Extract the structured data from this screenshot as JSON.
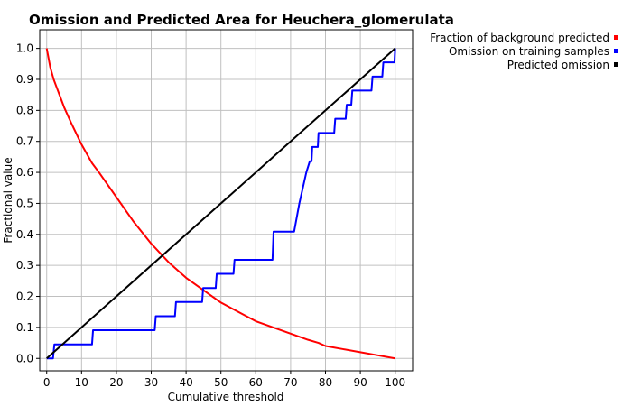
{
  "chart_data": {
    "type": "line",
    "title": "Omission and Predicted Area for Heuchera_glomerulata",
    "xlabel": "Cumulative threshold",
    "ylabel": "Fractional value",
    "xlim": [
      -2,
      105
    ],
    "ylim": [
      -0.04,
      1.06
    ],
    "x_ticks": [
      0,
      10,
      20,
      30,
      40,
      50,
      60,
      70,
      80,
      90,
      100
    ],
    "y_ticks": [
      0.0,
      0.1,
      0.2,
      0.3,
      0.4,
      0.5,
      0.6,
      0.7,
      0.8,
      0.9,
      1.0
    ],
    "x_tick_labels": [
      "0",
      "10",
      "20",
      "30",
      "40",
      "50",
      "60",
      "70",
      "80",
      "90",
      "100"
    ],
    "y_tick_labels": [
      "0.0",
      "0.1",
      "0.2",
      "0.3",
      "0.4",
      "0.5",
      "0.6",
      "0.7",
      "0.8",
      "0.9",
      "1.0"
    ],
    "grid": true,
    "legend_position": "top-right, outside plot",
    "series": [
      {
        "name": "Fraction of background predicted",
        "color": "#ff0000",
        "x": [
          0,
          1,
          2,
          3,
          5,
          7,
          10,
          13,
          15,
          20,
          25,
          30,
          35,
          40,
          45,
          50,
          55,
          60,
          65,
          70,
          75,
          78,
          80,
          85,
          90,
          95,
          100
        ],
        "y": [
          1.0,
          0.94,
          0.9,
          0.87,
          0.81,
          0.76,
          0.69,
          0.63,
          0.6,
          0.52,
          0.44,
          0.37,
          0.31,
          0.26,
          0.22,
          0.18,
          0.15,
          0.12,
          0.1,
          0.08,
          0.06,
          0.05,
          0.04,
          0.03,
          0.02,
          0.01,
          0.0
        ]
      },
      {
        "name": "Omission on training samples",
        "color": "#0000ff",
        "x": [
          0,
          1.8,
          2.2,
          13.0,
          13.3,
          31.0,
          31.3,
          36.8,
          37.1,
          44.6,
          44.9,
          48.5,
          48.8,
          53.6,
          53.9,
          64.8,
          65.1,
          71.0,
          72.5,
          74.5,
          75.5,
          76.0,
          76.2,
          77.8,
          78.0,
          82.5,
          82.8,
          85.8,
          86.1,
          87.4,
          87.7,
          89.0,
          89.3,
          93.2,
          93.5,
          96.3,
          96.6,
          99.8,
          100
        ],
        "y": [
          0.0,
          0.0,
          0.045,
          0.045,
          0.091,
          0.091,
          0.136,
          0.136,
          0.182,
          0.182,
          0.227,
          0.227,
          0.273,
          0.273,
          0.318,
          0.318,
          0.409,
          0.409,
          0.5,
          0.6,
          0.636,
          0.636,
          0.682,
          0.682,
          0.727,
          0.727,
          0.773,
          0.773,
          0.818,
          0.818,
          0.864,
          0.864,
          0.864,
          0.864,
          0.909,
          0.909,
          0.955,
          0.955,
          1.0
        ]
      },
      {
        "name": "Predicted omission",
        "color": "#000000",
        "x": [
          0,
          100
        ],
        "y": [
          0,
          1
        ]
      }
    ]
  }
}
